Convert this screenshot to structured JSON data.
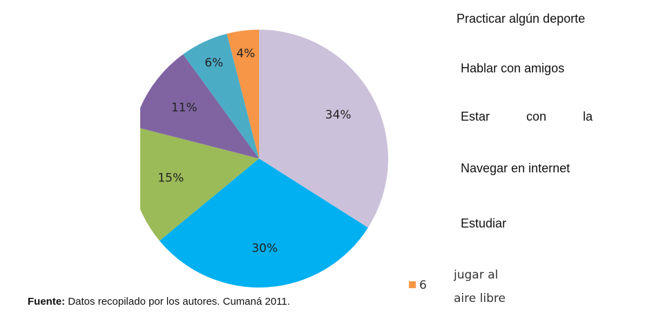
{
  "chart_data": {
    "type": "pie",
    "values": [
      34,
      30,
      15,
      11,
      6,
      4
    ],
    "value_labels": [
      "34%",
      "30%",
      "15%",
      "11%",
      "6%",
      "4%"
    ],
    "colors": [
      "#ccc1da",
      "#00b0f0",
      "#9bbb59",
      "#8064a2",
      "#4bacc6",
      "#f79646"
    ],
    "legend": [
      "Practicar algún deporte",
      "Hablar con amigos",
      "Estar con la",
      "Navegar en internet",
      "Estudiar"
    ],
    "extra_legend": {
      "number": "6",
      "color": "#f79646",
      "lines": [
        "jugar al",
        "aire libre"
      ]
    },
    "source_label": "Fuente:",
    "source": "Datos recopilado por los autores. Cumaná 2011."
  }
}
